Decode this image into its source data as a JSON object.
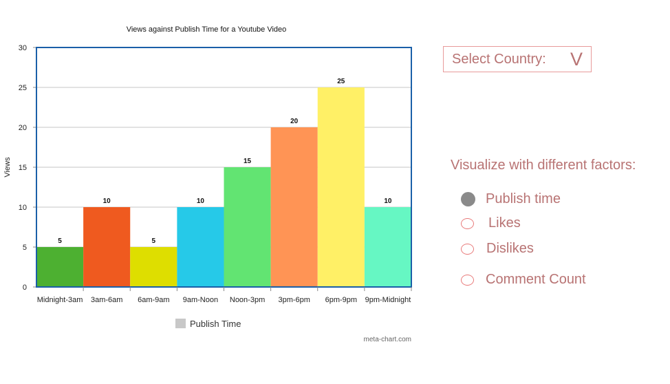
{
  "chart_data": {
    "type": "bar",
    "title": "Views against Publish Time for a Youtube Video",
    "xlabel": "",
    "ylabel": "Views",
    "categories": [
      "Midnight-3am",
      "3am-6am",
      "6am-9am",
      "9am-Noon",
      "Noon-3pm",
      "3pm-6pm",
      "6pm-9pm",
      "9pm-Midnight"
    ],
    "values": [
      5,
      10,
      5,
      10,
      15,
      20,
      25,
      10
    ],
    "colors": [
      "#4db031",
      "#ef5a1f",
      "#dede00",
      "#26c9e8",
      "#62e472",
      "#ff9455",
      "#fff066",
      "#66f7c3"
    ],
    "ylim": [
      0,
      30
    ],
    "yticks": [
      0,
      5,
      10,
      15,
      20,
      25,
      30
    ],
    "grid": true,
    "legend": {
      "label": "Publish Time",
      "position": "bottom",
      "color": "#c8c8c8"
    },
    "axis_color": "#1a5fa8"
  },
  "credit": "meta-chart.com",
  "controls": {
    "country_select": {
      "label": "Select Country:",
      "icon": "chevron-down-icon",
      "glyph": "V"
    },
    "factors_title": "Visualize with different factors:",
    "options": [
      {
        "label": "Publish time",
        "selected": true
      },
      {
        "label": "Likes",
        "selected": false
      },
      {
        "label": "Dislikes",
        "selected": false
      },
      {
        "label": "Comment Count",
        "selected": false
      }
    ],
    "accent_color": "#b87373"
  }
}
